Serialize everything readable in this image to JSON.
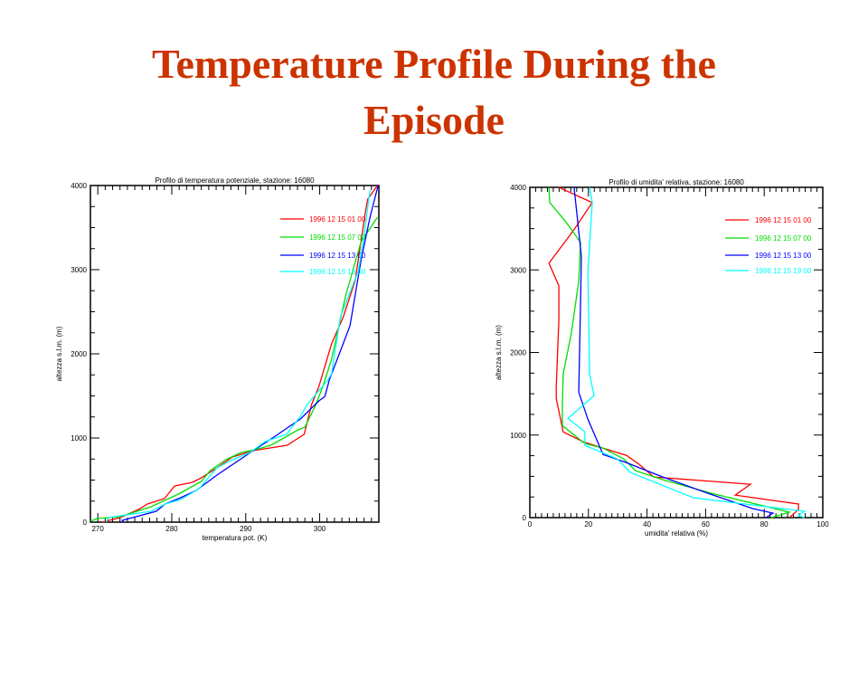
{
  "slide": {
    "title_line1": "Temperature Profile During the",
    "title_line2": "Episode"
  },
  "chart_data": [
    {
      "type": "line",
      "title": "Profilo di temperatura potenziale, stazione: 16080",
      "xlabel": "temperatura pot. (K)",
      "ylabel": "altezza s.l.m. (m)",
      "xlim": [
        269,
        308
      ],
      "ylim": [
        0,
        4000
      ],
      "xticks": [
        270,
        280,
        290,
        300
      ],
      "xtick_labels": [
        "270",
        "280",
        "290",
        "300"
      ],
      "yticks": [
        0,
        1000,
        2000,
        3000,
        4000
      ],
      "ytick_labels": [
        "0",
        "1000",
        "2000",
        "3000",
        "4000"
      ],
      "legend_position": "right",
      "series": [
        {
          "name": "1996 12 15 01 00",
          "color": "#ff0000",
          "x": [
            270.6,
            273.0,
            275.5,
            276.7,
            279.0,
            280.4,
            282.8,
            284.0,
            286.1,
            288.2,
            291.0,
            295.6,
            297.9,
            298.9,
            299.9,
            301.6,
            303.2,
            304.8,
            306.2,
            306.5,
            307.8
          ],
          "y": [
            0,
            54,
            150,
            215,
            280,
            430,
            473,
            527,
            645,
            774,
            849,
            914,
            1043,
            1398,
            1613,
            2118,
            2440,
            2870,
            3698,
            3838,
            4000
          ]
        },
        {
          "name": "1996 12 15 07 00",
          "color": "#00dd00",
          "x": [
            269.0,
            269.9,
            273.0,
            277.2,
            280.9,
            284.0,
            285.2,
            287.3,
            289.4,
            291.3,
            293.4,
            297.1,
            298.0,
            299.5,
            300.5,
            301.6,
            303.5,
            305.6,
            307.8
          ],
          "y": [
            11,
            43,
            65,
            183,
            333,
            484,
            613,
            742,
            828,
            860,
            914,
            1097,
            1129,
            1398,
            1634,
            1935,
            2688,
            3333,
            3623
          ]
        },
        {
          "name": "1996 12 15 13 00",
          "color": "#0000ff",
          "x": [
            273.5,
            273.3,
            277.9,
            279.1,
            281.2,
            283.3,
            286.1,
            290.1,
            293.8,
            297.4,
            299.9,
            300.7,
            301.3,
            304.1,
            305.6,
            306.8,
            307.9
          ],
          "y": [
            0,
            22,
            129,
            215,
            290,
            376,
            559,
            796,
            1011,
            1226,
            1441,
            1494,
            1688,
            2333,
            3118,
            3623,
            4000
          ]
        },
        {
          "name": "1996 12 15 19 00",
          "color": "#00ffff",
          "x": [
            271.1,
            271.5,
            273.0,
            277.2,
            279.1,
            281.2,
            283.7,
            286.1,
            288.2,
            290.6,
            292.6,
            295.5,
            297.4,
            298.3,
            301.1,
            301.6,
            302.8,
            305.2,
            305.9,
            306.8
          ],
          "y": [
            0,
            54,
            75,
            129,
            215,
            269,
            398,
            645,
            742,
            828,
            957,
            1043,
            1258,
            1398,
            1688,
            1763,
            2440,
            2978,
            3333,
            3945
          ]
        }
      ]
    },
    {
      "type": "line",
      "title": "Profilo di umidita' relativa, stazione: 16080",
      "xlabel": "umidita' relativa (%)",
      "ylabel": "altezza s.l.m. (m)",
      "xlim": [
        0,
        100
      ],
      "ylim": [
        0,
        4000
      ],
      "xticks": [
        0,
        20,
        40,
        60,
        80,
        100
      ],
      "xtick_labels": [
        "0",
        "20",
        "40",
        "60",
        "80",
        "100"
      ],
      "yticks": [
        0,
        1000,
        2000,
        3000,
        4000
      ],
      "ytick_labels": [
        "0",
        "1000",
        "2000",
        "3000",
        "4000"
      ],
      "legend_position": "right",
      "series": [
        {
          "name": "1996 12 15 01 00",
          "color": "#ff0000",
          "x": [
            9.9,
            21.3,
            15.1,
            6.5,
            9.9,
            9.9,
            9.0,
            9.0,
            11.4,
            18.2,
            25.0,
            33.0,
            37.3,
            42.3,
            75.3,
            70.1,
            91.7,
            91.7,
            88.6
          ],
          "y": [
            4000,
            3815,
            3487,
            3082,
            2809,
            2394,
            1585,
            1443,
            1038,
            918,
            842,
            754,
            645,
            492,
            404,
            273,
            164,
            98,
            0
          ]
        },
        {
          "name": "1996 12 15 07 00",
          "color": "#00dd00",
          "x": [
            6.5,
            6.8,
            12.0,
            17.3,
            16.7,
            14.2,
            11.4,
            11.1,
            11.1,
            18.8,
            25.0,
            32.1,
            36.1,
            45.4,
            62.0,
            88.6,
            82.4
          ],
          "y": [
            4000,
            3815,
            3596,
            3334,
            2864,
            2241,
            1738,
            1366,
            1115,
            896,
            842,
            710,
            568,
            459,
            295,
            66,
            0
          ]
        },
        {
          "name": "1996 12 15 13 00",
          "color": "#0000ff",
          "x": [
            15.1,
            16.0,
            17.6,
            17.3,
            16.7,
            19.8,
            25.0,
            32.1,
            45.4,
            60.8,
            76.2,
            83.0,
            80.6
          ],
          "y": [
            4000,
            3705,
            3159,
            2612,
            1519,
            1191,
            765,
            678,
            492,
            295,
            109,
            55,
            0
          ]
        },
        {
          "name": "1996 12 15 19 00",
          "color": "#00ffff",
          "x": [
            20.4,
            21.3,
            19.8,
            20.4,
            21.9,
            13.0,
            18.8,
            18.8,
            29.9,
            34.3,
            55.9,
            93.8,
            91.7,
            93.8
          ],
          "y": [
            4000,
            3815,
            2973,
            1738,
            1476,
            1202,
            1038,
            874,
            710,
            547,
            240,
            77,
            22,
            0
          ]
        }
      ]
    }
  ]
}
